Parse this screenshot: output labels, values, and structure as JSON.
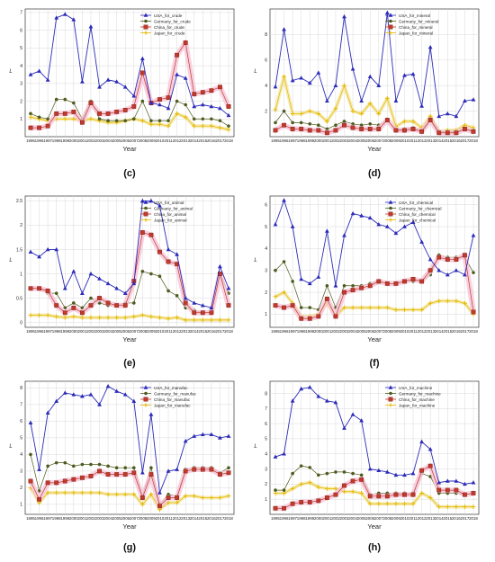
{
  "figure": {
    "panel_labels": [
      "(c)",
      "(d)",
      "(e)",
      "(f)",
      "(g)",
      "(h)"
    ]
  },
  "legend_style": {
    "colors": {
      "USA": "#2b2bb8",
      "Germany": "#4e5b1e",
      "China": "#c0392b",
      "Japan": "#e6b800"
    },
    "markers": {
      "USA": "triangle",
      "Germany": "circle",
      "China": "square",
      "Japan": "plus"
    },
    "band_color": "#f7c6d9",
    "line_color": "#f0a8c8"
  },
  "chart_data": [
    {
      "type": "line",
      "panel": "(c)",
      "xlabel": "Year",
      "ylabel": "L",
      "ylim": [
        0,
        7.2
      ],
      "yticks": [
        1,
        2,
        3,
        4,
        5,
        6,
        7
      ],
      "grid": true,
      "legend_placement": "top-right",
      "x": [
        "1995",
        "1996",
        "1997",
        "1998",
        "1999",
        "2000",
        "2001",
        "2002",
        "2003",
        "2004",
        "2005",
        "2006",
        "2007",
        "2008",
        "2009",
        "2010",
        "2011",
        "2012",
        "2013",
        "2014",
        "2015",
        "2016",
        "2017",
        "2018"
      ],
      "series": [
        {
          "name": "USA_for_crude",
          "key": "USA",
          "values": [
            3.5,
            3.7,
            3.2,
            6.7,
            6.9,
            6.6,
            3.1,
            6.2,
            2.8,
            3.2,
            3.1,
            2.8,
            2.3,
            4.4,
            1.9,
            1.8,
            1.6,
            3.5,
            3.3,
            1.7,
            1.8,
            1.7,
            1.6,
            1.2
          ]
        },
        {
          "name": "Germany_for_crude",
          "key": "Germany",
          "values": [
            1.3,
            1.1,
            1.0,
            2.1,
            2.1,
            1.9,
            1.0,
            2.0,
            1.0,
            0.9,
            0.9,
            0.9,
            1.0,
            2.0,
            0.9,
            0.9,
            0.9,
            2.0,
            1.8,
            1.0,
            1.0,
            1.0,
            0.9,
            0.6
          ]
        },
        {
          "name": "China_for_crude",
          "key": "China",
          "values": [
            0.5,
            0.5,
            0.6,
            1.3,
            1.3,
            1.4,
            0.8,
            1.9,
            1.3,
            1.3,
            1.4,
            1.5,
            1.7,
            3.6,
            1.9,
            2.1,
            2.2,
            4.6,
            5.3,
            2.4,
            2.5,
            2.6,
            2.8,
            1.7
          ]
        },
        {
          "name": "Japan_for_crude",
          "key": "Japan",
          "values": [
            1.1,
            1.0,
            0.9,
            1.0,
            1.0,
            1.0,
            0.9,
            1.0,
            0.9,
            0.8,
            0.8,
            0.9,
            1.0,
            0.9,
            0.7,
            0.7,
            0.6,
            1.3,
            1.1,
            0.6,
            0.6,
            0.6,
            0.5,
            0.4
          ]
        }
      ]
    },
    {
      "type": "line",
      "panel": "(d)",
      "xlabel": "Year",
      "ylabel": "L",
      "ylim": [
        0,
        10
      ],
      "yticks": [
        2,
        4,
        6,
        8
      ],
      "grid": true,
      "legend_placement": "top-right",
      "x": [
        "1995",
        "1996",
        "1997",
        "1998",
        "1999",
        "2000",
        "2001",
        "2002",
        "2003",
        "2004",
        "2005",
        "2006",
        "2007",
        "2008",
        "2009",
        "2010",
        "2011",
        "2012",
        "2013",
        "2014",
        "2015",
        "2016",
        "2017",
        "2018"
      ],
      "series": [
        {
          "name": "USA_for_mineral",
          "key": "USA",
          "values": [
            3.9,
            8.4,
            4.4,
            4.6,
            4.2,
            5.0,
            2.8,
            4.0,
            9.4,
            5.3,
            2.8,
            4.7,
            4.0,
            9.7,
            2.8,
            4.8,
            4.9,
            2.4,
            7.0,
            1.6,
            1.8,
            1.6,
            2.8,
            2.9
          ]
        },
        {
          "name": "Germany_for_mineral",
          "key": "Germany",
          "values": [
            1.1,
            2.0,
            1.1,
            1.1,
            1.0,
            0.9,
            0.6,
            0.9,
            1.2,
            1.0,
            0.9,
            1.0,
            0.9,
            1.3,
            0.5,
            0.6,
            0.7,
            0.5,
            1.4,
            0.4,
            0.4,
            0.4,
            0.6,
            0.5
          ]
        },
        {
          "name": "China_for_mineral",
          "key": "China",
          "values": [
            0.5,
            0.9,
            0.6,
            0.6,
            0.5,
            0.5,
            0.3,
            0.5,
            0.9,
            0.7,
            0.6,
            0.6,
            0.6,
            1.3,
            0.5,
            0.5,
            0.6,
            0.4,
            1.3,
            0.3,
            0.3,
            0.3,
            0.6,
            0.4
          ]
        },
        {
          "name": "Japan_for_mineral",
          "key": "Japan",
          "values": [
            2.1,
            4.7,
            1.8,
            1.8,
            2.0,
            1.8,
            1.2,
            2.2,
            4.0,
            2.0,
            1.8,
            2.6,
            1.8,
            3.0,
            0.8,
            1.2,
            1.2,
            0.7,
            1.6,
            0.4,
            0.5,
            0.5,
            0.9,
            0.7
          ]
        }
      ]
    },
    {
      "type": "line",
      "panel": "(e)",
      "xlabel": "Year",
      "ylabel": "L",
      "ylim": [
        -0.1,
        2.6
      ],
      "yticks": [
        0.0,
        0.5,
        1.0,
        1.5,
        2.0,
        2.5
      ],
      "grid": true,
      "legend_placement": "top-right",
      "x": [
        "1995",
        "1996",
        "1997",
        "1998",
        "1999",
        "2000",
        "2001",
        "2002",
        "2003",
        "2004",
        "2005",
        "2006",
        "2007",
        "2008",
        "2009",
        "2010",
        "2011",
        "2012",
        "2013",
        "2014",
        "2015",
        "2016",
        "2017",
        "2018"
      ],
      "series": [
        {
          "name": "USA_for_animal",
          "key": "USA",
          "values": [
            1.45,
            1.35,
            1.5,
            1.5,
            0.7,
            1.05,
            0.6,
            1.0,
            0.9,
            0.8,
            0.7,
            0.6,
            0.8,
            2.5,
            2.5,
            2.4,
            1.5,
            1.4,
            0.5,
            0.4,
            0.35,
            0.3,
            1.15,
            0.7
          ]
        },
        {
          "name": "Germany_for_animal",
          "key": "Germany",
          "values": [
            0.7,
            0.7,
            0.6,
            0.6,
            0.3,
            0.4,
            0.3,
            0.5,
            0.4,
            0.35,
            0.35,
            0.4,
            0.4,
            1.05,
            1.0,
            0.95,
            0.65,
            0.55,
            0.3,
            0.25,
            0.2,
            0.2,
            1.0,
            0.6
          ]
        },
        {
          "name": "China_for_animal",
          "key": "China",
          "values": [
            0.7,
            0.7,
            0.65,
            0.35,
            0.2,
            0.3,
            0.2,
            0.35,
            0.5,
            0.4,
            0.35,
            0.35,
            0.85,
            1.85,
            1.8,
            1.45,
            1.25,
            1.2,
            0.4,
            0.2,
            0.2,
            0.2,
            1.0,
            0.35
          ]
        },
        {
          "name": "Japan_for_animal",
          "key": "Japan",
          "values": [
            0.15,
            0.15,
            0.15,
            0.12,
            0.1,
            0.12,
            0.1,
            0.1,
            0.1,
            0.1,
            0.1,
            0.1,
            0.12,
            0.15,
            0.12,
            0.1,
            0.08,
            0.1,
            0.05,
            0.05,
            0.05,
            0.05,
            0.05,
            0.05
          ]
        }
      ]
    },
    {
      "type": "line",
      "panel": "(f)",
      "xlabel": "Year",
      "ylabel": "L",
      "ylim": [
        0.4,
        6.4
      ],
      "yticks": [
        1,
        2,
        3,
        4,
        5,
        6
      ],
      "grid": true,
      "legend_placement": "top-right",
      "x": [
        "1995",
        "1996",
        "1997",
        "1998",
        "1999",
        "2000",
        "2001",
        "2002",
        "2003",
        "2004",
        "2005",
        "2006",
        "2007",
        "2008",
        "2009",
        "2010",
        "2011",
        "2012",
        "2013",
        "2014",
        "2015",
        "2016",
        "2017",
        "2018"
      ],
      "series": [
        {
          "name": "USA_for_chemical",
          "key": "USA",
          "values": [
            5.1,
            6.2,
            5.0,
            2.6,
            2.4,
            2.7,
            4.8,
            2.3,
            4.6,
            5.6,
            5.5,
            5.4,
            5.1,
            5.0,
            4.7,
            5.0,
            5.2,
            4.3,
            3.5,
            3.0,
            2.8,
            3.0,
            2.8,
            4.6
          ]
        },
        {
          "name": "Germany_for_chemical",
          "key": "Germany",
          "values": [
            3.0,
            3.4,
            2.5,
            1.3,
            1.3,
            1.2,
            2.3,
            1.3,
            2.3,
            2.3,
            2.3,
            2.4,
            2.5,
            2.4,
            2.4,
            2.5,
            2.5,
            2.5,
            2.8,
            3.7,
            3.6,
            3.6,
            3.6,
            2.9
          ]
        },
        {
          "name": "China_for_chemical",
          "key": "China",
          "values": [
            1.4,
            1.3,
            1.4,
            0.8,
            0.8,
            0.9,
            1.7,
            0.9,
            2.0,
            2.1,
            2.2,
            2.3,
            2.5,
            2.4,
            2.4,
            2.5,
            2.6,
            2.5,
            3.0,
            3.6,
            3.5,
            3.5,
            3.7,
            1.1
          ]
        },
        {
          "name": "Japan_for_chemical",
          "key": "Japan",
          "values": [
            1.8,
            2.0,
            1.5,
            0.9,
            0.9,
            1.0,
            1.5,
            0.9,
            1.3,
            1.3,
            1.3,
            1.3,
            1.3,
            1.3,
            1.2,
            1.2,
            1.2,
            1.2,
            1.5,
            1.6,
            1.6,
            1.6,
            1.5,
            1.0
          ]
        }
      ]
    },
    {
      "type": "line",
      "panel": "(g)",
      "xlabel": "Year",
      "ylabel": "L",
      "ylim": [
        0.4,
        8.4
      ],
      "yticks": [
        1,
        2,
        3,
        4,
        5,
        6,
        7,
        8
      ],
      "grid": true,
      "legend_placement": "top-right",
      "x": [
        "1995",
        "1996",
        "1997",
        "1998",
        "1999",
        "2000",
        "2001",
        "2002",
        "2003",
        "2004",
        "2005",
        "2006",
        "2007",
        "2008",
        "2009",
        "2010",
        "2011",
        "2012",
        "2013",
        "2014",
        "2015",
        "2016",
        "2017",
        "2018"
      ],
      "series": [
        {
          "name": "USA_for_manufac",
          "key": "USA",
          "values": [
            5.9,
            3.1,
            6.5,
            7.2,
            7.7,
            7.6,
            7.5,
            7.6,
            7.0,
            8.1,
            7.8,
            7.6,
            7.2,
            2.9,
            6.4,
            1.7,
            3.0,
            3.1,
            4.8,
            5.1,
            5.2,
            5.2,
            5.0,
            5.1
          ]
        },
        {
          "name": "Germany_for_manufac",
          "key": "Germany",
          "values": [
            4.0,
            1.8,
            3.3,
            3.5,
            3.5,
            3.3,
            3.4,
            3.4,
            3.4,
            3.3,
            3.2,
            3.2,
            3.2,
            1.5,
            3.2,
            1.0,
            1.6,
            1.5,
            3.1,
            3.2,
            3.2,
            3.2,
            2.9,
            3.2
          ]
        },
        {
          "name": "China_for_manufac",
          "key": "China",
          "values": [
            2.4,
            1.3,
            2.3,
            2.3,
            2.4,
            2.5,
            2.6,
            2.7,
            3.0,
            2.8,
            2.8,
            2.8,
            2.9,
            1.4,
            2.8,
            0.9,
            1.4,
            1.4,
            3.0,
            3.1,
            3.1,
            3.1,
            2.8,
            2.9
          ]
        },
        {
          "name": "Japan_for_manufac",
          "key": "Japan",
          "values": [
            2.0,
            1.1,
            1.7,
            1.7,
            1.7,
            1.7,
            1.7,
            1.7,
            1.7,
            1.6,
            1.6,
            1.6,
            1.6,
            1.0,
            1.6,
            0.7,
            1.1,
            1.1,
            1.5,
            1.5,
            1.4,
            1.4,
            1.4,
            1.5
          ]
        }
      ]
    },
    {
      "type": "line",
      "panel": "(h)",
      "xlabel": "Year",
      "ylabel": "L",
      "ylim": [
        0,
        8.8
      ],
      "yticks": [
        1,
        2,
        3,
        4,
        5,
        6,
        7,
        8
      ],
      "grid": true,
      "legend_placement": "top-right",
      "x": [
        "1995",
        "1996",
        "1997",
        "1998",
        "1999",
        "2000",
        "2001",
        "2002",
        "2003",
        "2004",
        "2005",
        "2006",
        "2007",
        "2008",
        "2009",
        "2010",
        "2011",
        "2012",
        "2013",
        "2014",
        "2015",
        "2016",
        "2017",
        "2018"
      ],
      "series": [
        {
          "name": "USA_for_machine",
          "key": "USA",
          "values": [
            3.8,
            4.0,
            7.5,
            8.3,
            8.4,
            7.8,
            7.5,
            7.4,
            5.7,
            6.6,
            6.2,
            3.0,
            2.9,
            2.8,
            2.6,
            2.6,
            2.7,
            4.8,
            4.3,
            2.1,
            2.2,
            2.2,
            2.0,
            2.1
          ]
        },
        {
          "name": "Germany_for_machine",
          "key": "Germany",
          "values": [
            1.6,
            1.6,
            2.7,
            3.2,
            3.1,
            2.6,
            2.7,
            2.8,
            2.8,
            2.7,
            2.6,
            1.3,
            1.4,
            1.4,
            1.4,
            1.4,
            1.4,
            2.7,
            2.5,
            1.4,
            1.4,
            1.4,
            1.3,
            1.4
          ]
        },
        {
          "name": "China_for_machine",
          "key": "China",
          "values": [
            0.4,
            0.4,
            0.7,
            0.8,
            0.8,
            0.9,
            1.1,
            1.3,
            1.9,
            2.2,
            2.3,
            1.2,
            1.2,
            1.2,
            1.3,
            1.3,
            1.3,
            2.9,
            3.2,
            1.6,
            1.6,
            1.6,
            1.3,
            1.4
          ]
        },
        {
          "name": "Japan_for_machine",
          "key": "Japan",
          "values": [
            1.4,
            1.4,
            1.7,
            2.0,
            2.1,
            1.8,
            1.7,
            1.7,
            1.5,
            1.5,
            1.4,
            0.7,
            0.7,
            0.7,
            0.7,
            0.7,
            0.7,
            1.4,
            1.1,
            0.5,
            0.5,
            0.5,
            0.5,
            0.5
          ]
        }
      ]
    }
  ]
}
